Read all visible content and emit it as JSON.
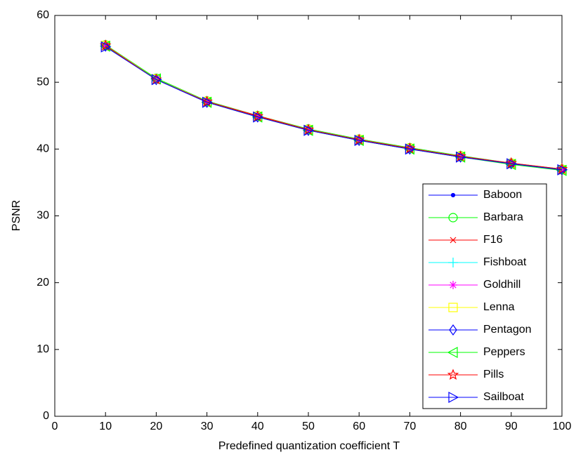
{
  "chart_data": {
    "type": "line",
    "xlabel": "Predefined quantization coefficient T",
    "ylabel": "PSNR",
    "x": [
      10,
      20,
      30,
      40,
      50,
      60,
      70,
      80,
      90,
      100
    ],
    "xlim": [
      0,
      100
    ],
    "xticks": [
      0,
      10,
      20,
      30,
      40,
      50,
      60,
      70,
      80,
      90,
      100
    ],
    "ylim": [
      0,
      60
    ],
    "yticks": [
      0,
      10,
      20,
      30,
      40,
      50,
      60
    ],
    "grid": false,
    "legend_position": "lower-right",
    "series": [
      {
        "name": "Baboon",
        "color": "#0000ff",
        "marker": "point",
        "values": [
          55.5,
          50.5,
          47.1,
          44.9,
          42.9,
          41.4,
          40.1,
          38.9,
          37.8,
          36.9
        ]
      },
      {
        "name": "Barbara",
        "color": "#00ff00",
        "marker": "circle",
        "values": [
          55.6,
          50.6,
          47.2,
          45.0,
          43.0,
          41.5,
          40.2,
          39.0,
          37.9,
          37.0
        ]
      },
      {
        "name": "F16",
        "color": "#ff0000",
        "marker": "x",
        "values": [
          55.4,
          50.4,
          47.1,
          45.0,
          42.9,
          41.4,
          40.1,
          38.9,
          37.8,
          36.9
        ]
      },
      {
        "name": "Fishboat",
        "color": "#00ffff",
        "marker": "plus",
        "values": [
          55.5,
          50.5,
          47.1,
          44.9,
          42.9,
          41.4,
          40.1,
          38.9,
          37.8,
          36.9
        ]
      },
      {
        "name": "Goldhill",
        "color": "#ff00ff",
        "marker": "star",
        "values": [
          55.5,
          50.5,
          47.1,
          44.9,
          42.9,
          41.4,
          40.1,
          38.9,
          37.9,
          36.9
        ]
      },
      {
        "name": "Lenna",
        "color": "#ffff00",
        "marker": "square",
        "values": [
          55.5,
          50.5,
          47.1,
          44.9,
          42.9,
          41.4,
          40.1,
          38.9,
          37.8,
          36.9
        ]
      },
      {
        "name": "Pentagon",
        "color": "#0000ff",
        "marker": "diamond",
        "values": [
          55.4,
          50.4,
          47.0,
          44.8,
          42.8,
          41.3,
          40.0,
          38.8,
          37.8,
          36.9
        ]
      },
      {
        "name": "Peppers",
        "color": "#00ff00",
        "marker": "triangle-left",
        "values": [
          55.4,
          50.5,
          47.0,
          44.8,
          42.8,
          41.3,
          40.0,
          38.8,
          37.7,
          36.8
        ]
      },
      {
        "name": "Pills",
        "color": "#ff0000",
        "marker": "pentagram",
        "values": [
          55.5,
          50.4,
          47.1,
          44.9,
          42.9,
          41.4,
          40.1,
          38.9,
          37.9,
          37.0
        ]
      },
      {
        "name": "Sailboat",
        "color": "#0000ff",
        "marker": "triangle-right",
        "values": [
          55.3,
          50.4,
          47.0,
          44.8,
          42.8,
          41.3,
          40.0,
          38.8,
          37.8,
          36.9
        ]
      }
    ]
  }
}
